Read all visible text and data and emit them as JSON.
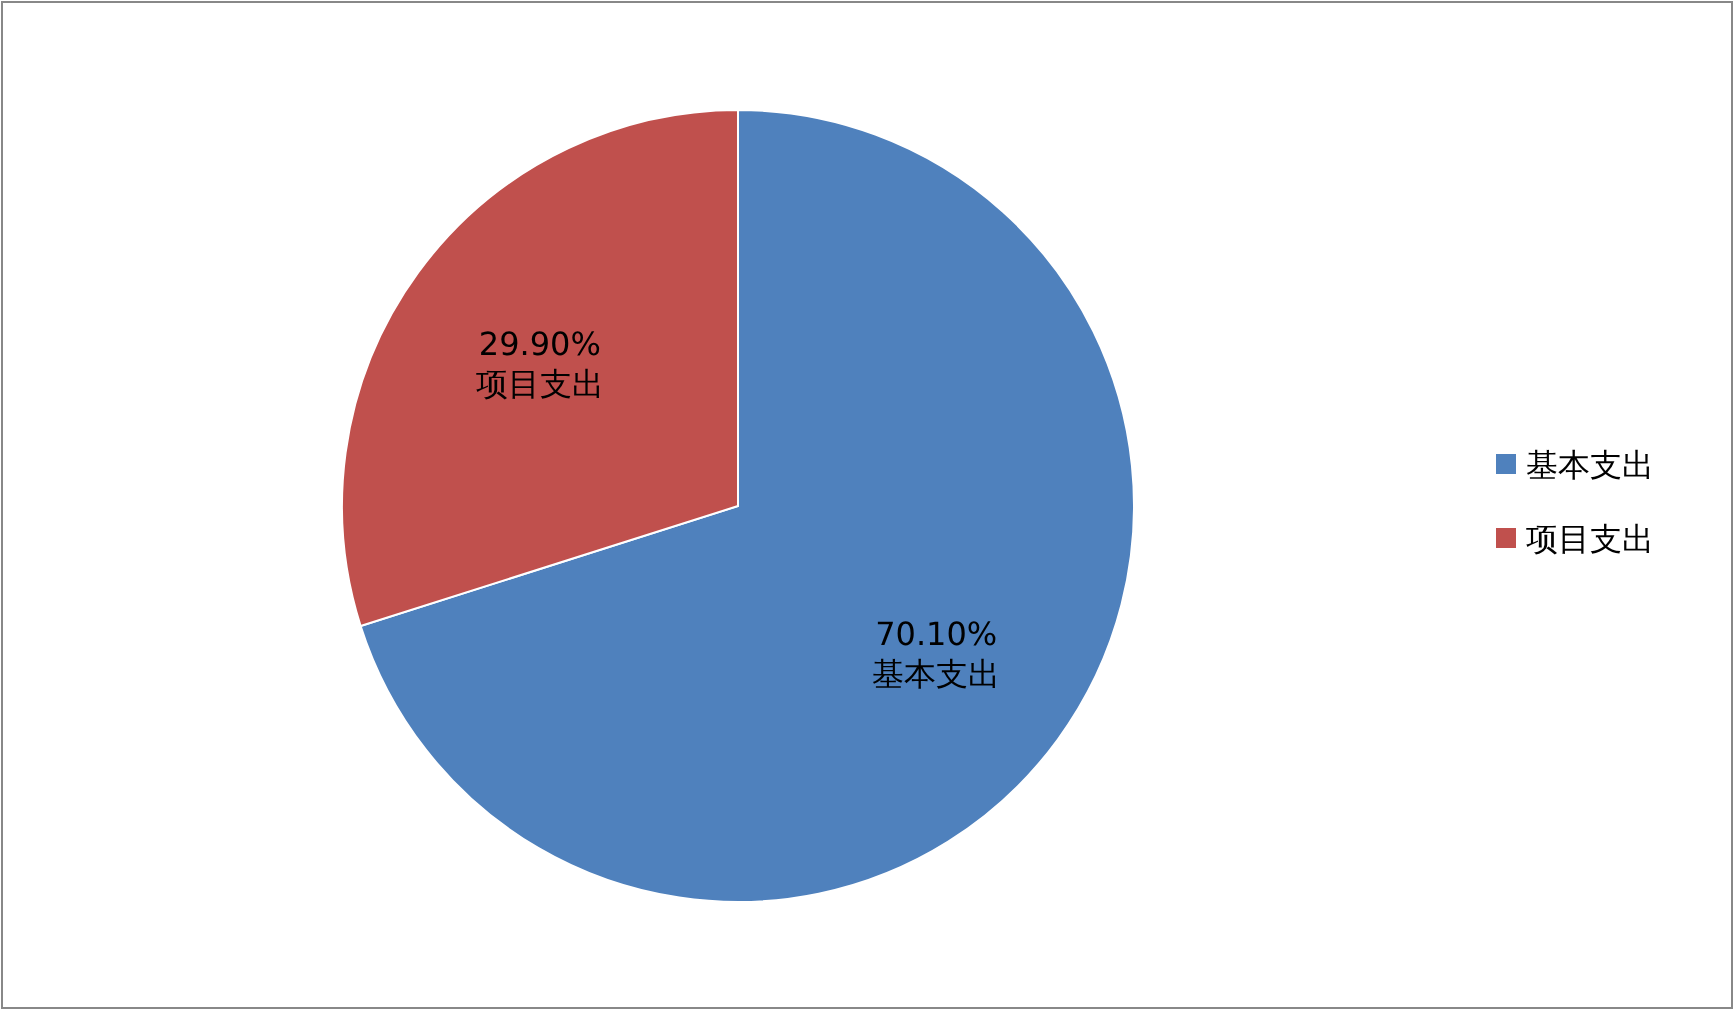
{
  "chart_data": {
    "type": "pie",
    "categories": [
      "基本支出",
      "项目支出"
    ],
    "values": [
      70.1,
      29.9
    ],
    "colors": [
      "#4f81bd",
      "#c0504d"
    ],
    "value_labels": [
      "70.10%",
      "29.90%"
    ],
    "legend": "right"
  }
}
